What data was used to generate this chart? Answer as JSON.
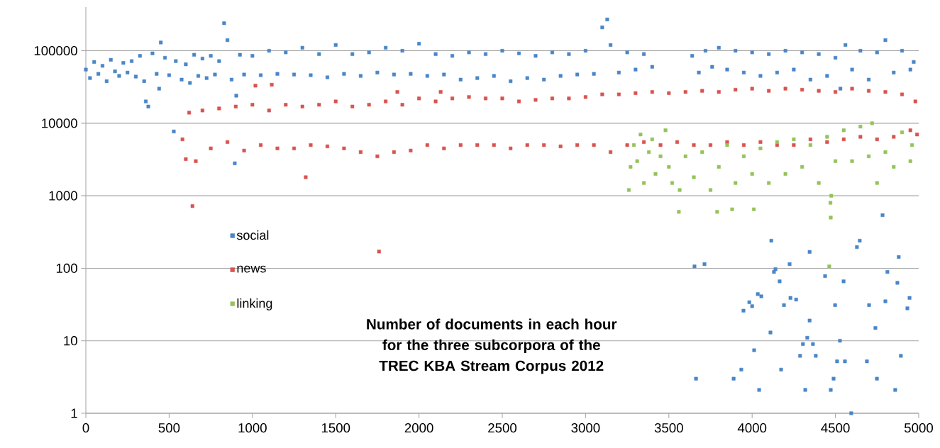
{
  "chart_data": {
    "type": "scatter",
    "title": "Number of documents in each hour for the three subcorpora of the TREC KBA Stream Corpus 2012",
    "xlim": [
      0,
      5000
    ],
    "xticks": [
      0,
      500,
      1000,
      1500,
      2000,
      2500,
      3000,
      3500,
      4000,
      4500,
      5000
    ],
    "ylim": [
      1,
      400000
    ],
    "yticks": [
      1,
      10,
      100,
      1000,
      10000,
      100000
    ],
    "log": "y",
    "grid": "y",
    "legend": "left",
    "marker": "square",
    "series": [
      {
        "name": "social",
        "color": "#4a86c8",
        "x": [
          0,
          25,
          50,
          75,
          100,
          125,
          150,
          175,
          200,
          225,
          250,
          275,
          300,
          325,
          350,
          360,
          375,
          400,
          425,
          440,
          450,
          475,
          500,
          528,
          540,
          575,
          600,
          625,
          650,
          675,
          700,
          725,
          750,
          775,
          800,
          830,
          850,
          875,
          894,
          903,
          925,
          950,
          1000,
          1050,
          1100,
          1150,
          1200,
          1250,
          1300,
          1350,
          1400,
          1450,
          1500,
          1550,
          1600,
          1650,
          1700,
          1750,
          1800,
          1850,
          1900,
          1950,
          2000,
          2050,
          2100,
          2150,
          2200,
          2250,
          2300,
          2350,
          2400,
          2450,
          2500,
          2550,
          2600,
          2650,
          2700,
          2750,
          2800,
          2850,
          2900,
          2950,
          3000,
          3050,
          3100,
          3130,
          3150,
          3200,
          3250,
          3300,
          3350,
          3400,
          3640,
          3680,
          3720,
          3760,
          3800,
          3850,
          3900,
          3950,
          4000,
          4050,
          4100,
          4150,
          4200,
          4250,
          4300,
          4350,
          4400,
          4450,
          4500,
          4530,
          4560,
          4600,
          4650,
          4700,
          4750,
          4800,
          4850,
          4900,
          4950,
          4970,
          3654,
          3714,
          4115,
          4345,
          4225,
          4140,
          4131,
          4165,
          4438,
          4549,
          4646,
          4629,
          4783,
          4880,
          4812,
          4872,
          4945,
          4932,
          4800,
          4702,
          4498,
          4264,
          4230,
          4191,
          4055,
          4034,
          3983,
          4000,
          3948,
          4345,
          4110,
          4331,
          4527,
          4305,
          4365,
          4740,
          4012,
          4288,
          4382,
          4893,
          4510,
          4557,
          4689,
          3935,
          4174,
          3663,
          3889,
          4489,
          4749,
          4042,
          4319,
          4472,
          4859,
          4595
        ],
        "values": [
          55000,
          42000,
          70000,
          48000,
          62000,
          38000,
          75000,
          52000,
          45000,
          68000,
          50000,
          72000,
          44000,
          85000,
          38000,
          20000,
          17000,
          92000,
          48000,
          30000,
          130000,
          80000,
          46000,
          7700,
          72000,
          40000,
          65000,
          36000,
          88000,
          45000,
          78000,
          42000,
          85000,
          47000,
          72000,
          240000,
          140000,
          40000,
          2800,
          24000,
          88000,
          47000,
          85000,
          46000,
          100000,
          48000,
          95000,
          47000,
          110000,
          46000,
          90000,
          43000,
          120000,
          48000,
          90000,
          45000,
          95000,
          50000,
          110000,
          47000,
          100000,
          48000,
          125000,
          45000,
          90000,
          47000,
          85000,
          40000,
          95000,
          42000,
          90000,
          45000,
          100000,
          38000,
          92000,
          42000,
          85000,
          40000,
          95000,
          45000,
          90000,
          47000,
          100000,
          48000,
          210000,
          270000,
          120000,
          50000,
          95000,
          55000,
          90000,
          60000,
          85000,
          50000,
          100000,
          60000,
          110000,
          55000,
          100000,
          50000,
          95000,
          45000,
          90000,
          50000,
          100000,
          55000,
          95000,
          40000,
          90000,
          45000,
          80000,
          30000,
          120000,
          55000,
          100000,
          40000,
          95000,
          140000,
          50000,
          100000,
          55000,
          70000,
          106,
          114,
          240,
          168,
          114,
          97,
          89,
          66,
          78,
          66,
          240,
          196,
          540,
          143,
          89,
          63,
          39,
          28,
          35,
          31,
          31,
          37,
          39,
          31,
          41,
          44,
          34,
          30,
          26,
          19,
          13,
          11,
          10,
          9,
          9,
          15,
          7.4,
          6.2,
          6.2,
          6.2,
          5.2,
          5.2,
          5.2,
          4,
          4,
          3,
          3,
          3,
          3,
          2.1,
          2.1,
          2.1,
          2.1,
          1
        ]
      },
      {
        "name": "news",
        "color": "#d9534f",
        "x": [
          580,
          600,
          620,
          640,
          660,
          700,
          750,
          800,
          850,
          900,
          950,
          1000,
          1018,
          1050,
          1100,
          1116,
          1150,
          1200,
          1250,
          1300,
          1320,
          1350,
          1400,
          1450,
          1500,
          1550,
          1600,
          1650,
          1700,
          1750,
          1760,
          1800,
          1850,
          1870,
          1900,
          1950,
          2000,
          2050,
          2100,
          2130,
          2150,
          2200,
          2250,
          2300,
          2350,
          2400,
          2450,
          2500,
          2550,
          2600,
          2650,
          2700,
          2750,
          2800,
          2850,
          2900,
          2950,
          3000,
          3050,
          3100,
          3150,
          3200,
          3250,
          3300,
          3350,
          3400,
          3450,
          3500,
          3550,
          3600,
          3650,
          3700,
          3750,
          3800,
          3850,
          3900,
          3950,
          4000,
          4050,
          4100,
          4150,
          4200,
          4250,
          4300,
          4350,
          4400,
          4450,
          4500,
          4550,
          4600,
          4650,
          4700,
          4750,
          4800,
          4850,
          4900,
          4950,
          4980,
          4990
        ],
        "values": [
          6000,
          3200,
          14000,
          720,
          3000,
          15000,
          4500,
          16000,
          5500,
          17000,
          4200,
          18000,
          33000,
          5000,
          15000,
          34000,
          4500,
          18000,
          4500,
          17000,
          1800,
          5000,
          18000,
          4800,
          20000,
          4500,
          17000,
          4000,
          18000,
          3500,
          170,
          20000,
          4000,
          27000,
          18000,
          4200,
          22000,
          5000,
          20000,
          27000,
          4500,
          22000,
          5000,
          23000,
          5000,
          22000,
          5000,
          22000,
          4500,
          20000,
          5000,
          21000,
          5000,
          22000,
          4800,
          22000,
          5000,
          23000,
          5000,
          25000,
          4000,
          25000,
          5000,
          26000,
          5500,
          27000,
          5000,
          26000,
          5500,
          27000,
          5000,
          28000,
          5000,
          27000,
          5500,
          29000,
          5000,
          30000,
          5500,
          28000,
          5000,
          30000,
          5000,
          29000,
          6000,
          28000,
          5500,
          27000,
          6000,
          30000,
          6500,
          28000,
          6000,
          27000,
          6500,
          25000,
          8000,
          20000,
          7000
        ]
      },
      {
        "name": "linking",
        "color": "#93c35a",
        "x": [
          3260,
          3270,
          3290,
          3310,
          3330,
          3350,
          3380,
          3400,
          3420,
          3450,
          3480,
          3500,
          3520,
          3560,
          3565,
          3600,
          3650,
          3700,
          3750,
          3790,
          3800,
          3850,
          3880,
          3900,
          3950,
          4000,
          4010,
          4050,
          4100,
          4150,
          4200,
          4250,
          4300,
          4350,
          4400,
          4450,
          4470,
          4472,
          4475,
          4463,
          4500,
          4550,
          4600,
          4650,
          4700,
          4720,
          4750,
          4800,
          4850,
          4900,
          4950,
          4960
        ],
        "values": [
          1200,
          2500,
          5000,
          3000,
          7000,
          1500,
          4000,
          6000,
          2000,
          3500,
          8000,
          2500,
          1500,
          600,
          1200,
          3500,
          1800,
          4000,
          1200,
          600,
          2500,
          5000,
          650,
          1500,
          3500,
          2000,
          650,
          4500,
          1500,
          5500,
          2000,
          6000,
          2500,
          5000,
          1500,
          6500,
          800,
          500,
          1000,
          106,
          3000,
          8000,
          3000,
          9000,
          3500,
          10000,
          1500,
          4000,
          2500,
          7500,
          3000,
          5000
        ]
      }
    ]
  }
}
